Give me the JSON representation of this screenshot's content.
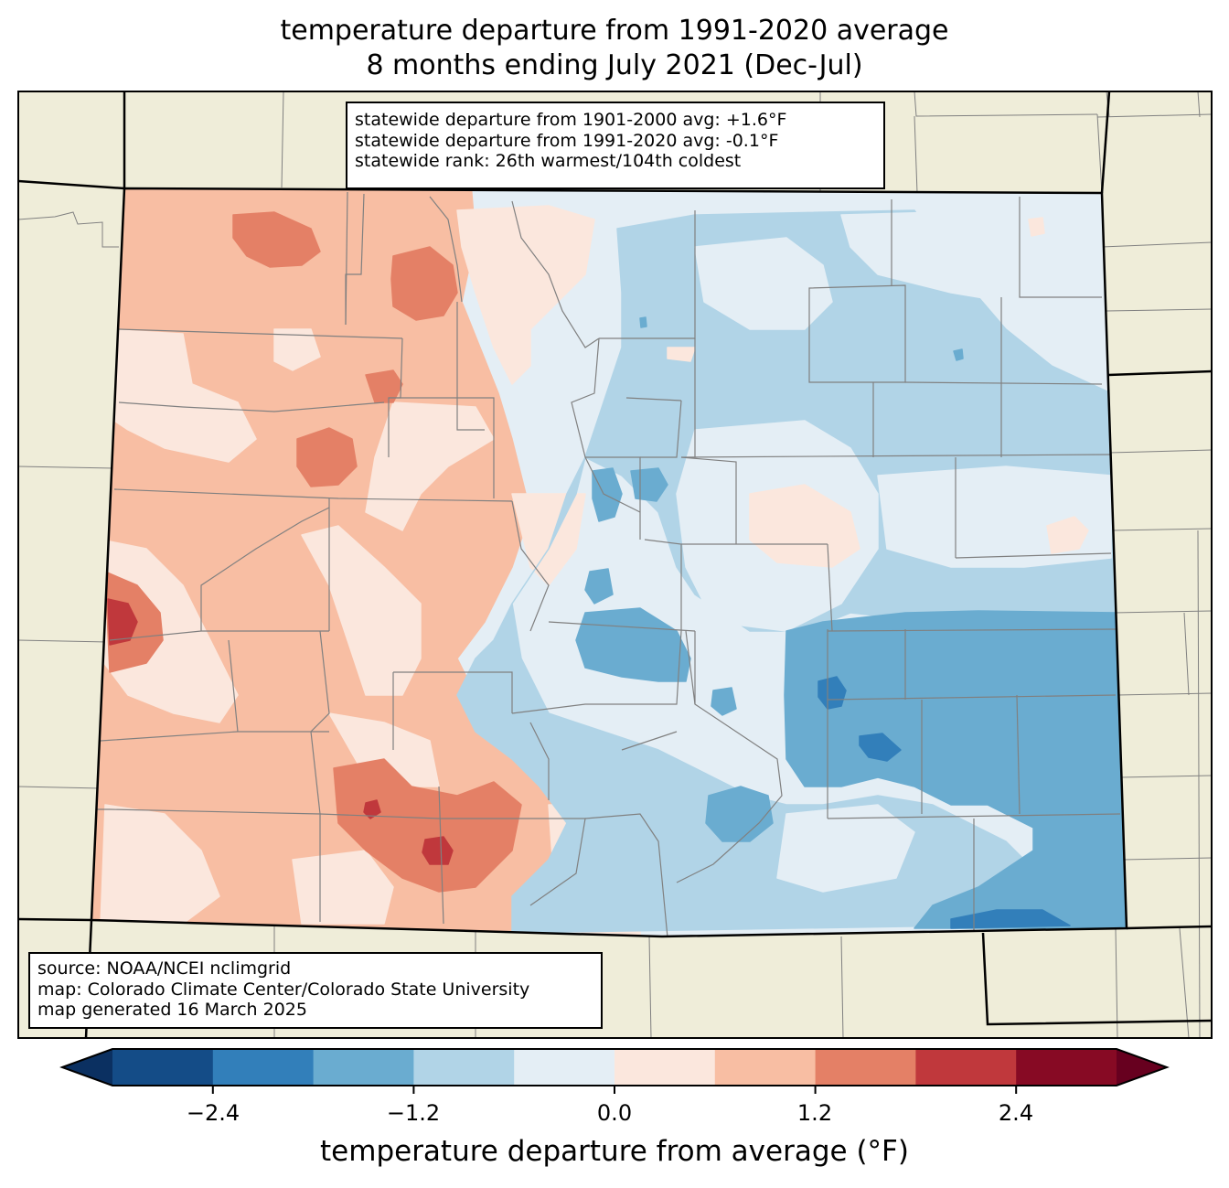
{
  "title": {
    "line1": "temperature departure from 1991-2020 average",
    "line2": "8 months ending July 2021 (Dec-Jul)"
  },
  "stats": {
    "line1": "statewide departure from 1901-2000 avg: +1.6°F",
    "line2": "statewide departure from 1991-2020 avg: -0.1°F",
    "line3": "statewide rank: 26th warmest/104th coldest"
  },
  "credits": {
    "line1": "source: NOAA/NCEI nclimgrid",
    "line2": "map: Colorado Climate Center/Colorado State University",
    "line3": "map generated 16 March 2025"
  },
  "colors": {
    "background_land": "#efedd9",
    "state_border": "#000000",
    "county_border": "#808080"
  },
  "colorbar": {
    "title": "temperature departure from average (°F)",
    "boundaries": [
      -3.0,
      -2.4,
      -1.8,
      -1.2,
      -0.6,
      0.0,
      0.6,
      1.2,
      1.8,
      2.4,
      3.0
    ],
    "colors": [
      "#144c87",
      "#327fba",
      "#6aacd0",
      "#b1d4e7",
      "#e4eef5",
      "#fbe7dd",
      "#f8bea3",
      "#e48066",
      "#c0383c",
      "#870a24"
    ],
    "under_color": "#0b3061",
    "over_color": "#67001f",
    "ticks": [
      {
        "value": -2.4,
        "label": "−2.4"
      },
      {
        "value": -1.2,
        "label": "−1.2"
      },
      {
        "value": 0.0,
        "label": "0.0"
      },
      {
        "value": 1.2,
        "label": "1.2"
      },
      {
        "value": 2.4,
        "label": "2.4"
      }
    ]
  },
  "chart_data": {
    "type": "heatmap",
    "title": "temperature departure from 1991-2020 average, 8 months ending July 2021 (Dec-Jul)",
    "region": "Colorado",
    "units": "°F",
    "value_range": [
      -3.0,
      3.0
    ],
    "summary": {
      "departure_1901_2000": 1.6,
      "departure_1991_2020": -0.1,
      "rank_warmest": 26,
      "rank_coldest": 104
    },
    "zones": [
      {
        "name": "northwest",
        "bin": [
          0.6,
          1.2
        ]
      },
      {
        "name": "northwest-hotspots",
        "bin": [
          1.2,
          1.8
        ]
      },
      {
        "name": "west-central-border",
        "bin": [
          1.8,
          2.4
        ]
      },
      {
        "name": "southwest-san-juans",
        "bin": [
          1.2,
          1.8
        ]
      },
      {
        "name": "southwest-peaks",
        "bin": [
          1.8,
          2.4
        ]
      },
      {
        "name": "front-range-north",
        "bin": [
          -0.6,
          0.0
        ]
      },
      {
        "name": "northeast-plains",
        "bin": [
          -1.2,
          -0.6
        ]
      },
      {
        "name": "east-central",
        "bin": [
          -0.6,
          0.0
        ]
      },
      {
        "name": "southeast-plains",
        "bin": [
          -1.8,
          -1.2
        ]
      },
      {
        "name": "southeast-pockets",
        "bin": [
          -2.4,
          -1.8
        ]
      }
    ]
  }
}
